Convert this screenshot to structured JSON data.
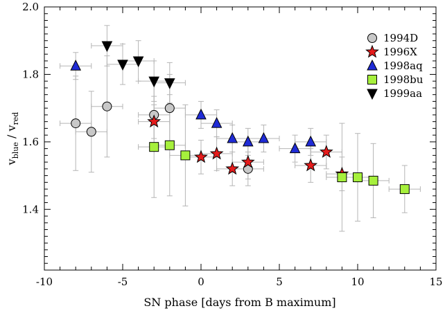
{
  "chart_data": {
    "type": "scatter",
    "xlabel": "SN phase [days from B maximum]",
    "ylabel_main": "v",
    "ylabel_sub1": "blue",
    "ylabel_sep": " / v",
    "ylabel_sub2": "red",
    "xlim": [
      -10,
      15
    ],
    "ylim": [
      1.22,
      2.0
    ],
    "xticks": [
      -10,
      -5,
      0,
      5,
      10,
      15
    ],
    "xtick_labels": [
      "-10",
      "-5",
      "0",
      "5",
      "10",
      "15"
    ],
    "yticks": [
      1.4,
      1.6,
      1.8,
      2.0
    ],
    "ytick_labels": [
      "1.4",
      "1.6",
      "1.8",
      "2.0"
    ],
    "grid": false,
    "legend_position": "top-right",
    "series": [
      {
        "name": "1994D",
        "marker": "circle",
        "color": "#c8c8c8",
        "points": [
          {
            "x": -8,
            "y": 1.655,
            "xerr": 1.0,
            "yerr": 0.14
          },
          {
            "x": -7,
            "y": 1.63,
            "xerr": 1.0,
            "yerr": 0.12
          },
          {
            "x": -6,
            "y": 1.705,
            "xerr": 1.0,
            "yerr": 0.15
          },
          {
            "x": -3,
            "y": 1.68,
            "xerr": 1.0,
            "yerr": 0.1
          },
          {
            "x": -2,
            "y": 1.7,
            "xerr": 1.0,
            "yerr": 0.1
          },
          {
            "x": 3,
            "y": 1.52,
            "xerr": 1.0,
            "yerr": 0.05
          }
        ]
      },
      {
        "name": "1996X",
        "marker": "star",
        "color": "#e51b1b",
        "points": [
          {
            "x": -3,
            "y": 1.66,
            "xerr": 1.0,
            "yerr": 0.05
          },
          {
            "x": 0,
            "y": 1.555,
            "xerr": 1.0,
            "yerr": 0.05
          },
          {
            "x": 1,
            "y": 1.565,
            "xerr": 1.0,
            "yerr": 0.05
          },
          {
            "x": 2,
            "y": 1.52,
            "xerr": 1.0,
            "yerr": 0.05
          },
          {
            "x": 3,
            "y": 1.54,
            "xerr": 1.0,
            "yerr": 0.05
          },
          {
            "x": 7,
            "y": 1.53,
            "xerr": 1.0,
            "yerr": 0.05
          },
          {
            "x": 8,
            "y": 1.57,
            "xerr": 1.0,
            "yerr": 0.05
          },
          {
            "x": 9,
            "y": 1.505,
            "xerr": 1.0,
            "yerr": 0.05
          }
        ]
      },
      {
        "name": "1998aq",
        "marker": "triangle-up",
        "color": "#1f2bd6",
        "points": [
          {
            "x": -8,
            "y": 1.825,
            "xerr": 1.0,
            "yerr": 0.04
          },
          {
            "x": 0,
            "y": 1.68,
            "xerr": 1.0,
            "yerr": 0.04
          },
          {
            "x": 1,
            "y": 1.655,
            "xerr": 1.0,
            "yerr": 0.04
          },
          {
            "x": 2,
            "y": 1.61,
            "xerr": 1.0,
            "yerr": 0.04
          },
          {
            "x": 3,
            "y": 1.6,
            "xerr": 1.0,
            "yerr": 0.04
          },
          {
            "x": 4,
            "y": 1.61,
            "xerr": 1.0,
            "yerr": 0.04
          },
          {
            "x": 6,
            "y": 1.58,
            "xerr": 1.0,
            "yerr": 0.04
          },
          {
            "x": 7,
            "y": 1.6,
            "xerr": 1.0,
            "yerr": 0.04
          }
        ]
      },
      {
        "name": "1998bu",
        "marker": "square",
        "color": "#a6f03c",
        "points": [
          {
            "x": -3,
            "y": 1.585,
            "xerr": 1.0,
            "yerr": 0.15
          },
          {
            "x": -2,
            "y": 1.59,
            "xerr": 1.0,
            "yerr": 0.15
          },
          {
            "x": -1,
            "y": 1.56,
            "xerr": 1.0,
            "yerr": 0.15
          },
          {
            "x": 9,
            "y": 1.495,
            "xerr": 1.0,
            "yerr": 0.16
          },
          {
            "x": 10,
            "y": 1.495,
            "xerr": 1.0,
            "yerr": 0.13
          },
          {
            "x": 11,
            "y": 1.485,
            "xerr": 1.0,
            "yerr": 0.11
          },
          {
            "x": 13,
            "y": 1.46,
            "xerr": 1.0,
            "yerr": 0.07
          }
        ]
      },
      {
        "name": "1999aa",
        "marker": "triangle-down",
        "color": "#000000",
        "points": [
          {
            "x": -6,
            "y": 1.885,
            "xerr": 1.0,
            "yerr": 0.06
          },
          {
            "x": -5,
            "y": 1.83,
            "xerr": 1.0,
            "yerr": 0.06
          },
          {
            "x": -4,
            "y": 1.84,
            "xerr": 1.0,
            "yerr": 0.06
          },
          {
            "x": -3,
            "y": 1.78,
            "xerr": 1.0,
            "yerr": 0.06
          },
          {
            "x": -2,
            "y": 1.775,
            "xerr": 1.0,
            "yerr": 0.06
          }
        ]
      }
    ]
  }
}
